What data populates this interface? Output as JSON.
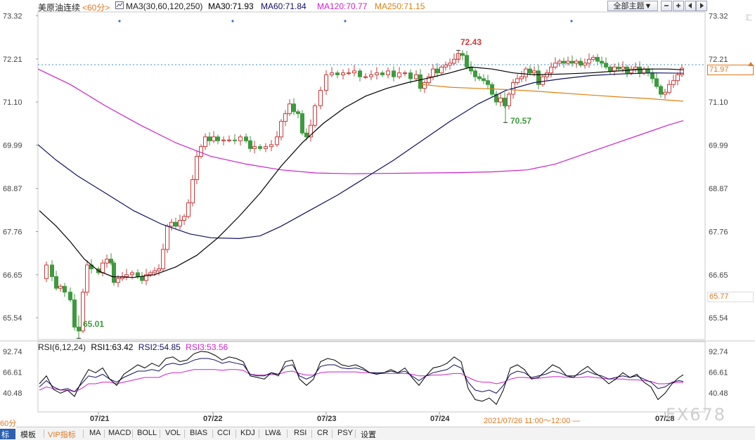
{
  "header": {
    "symbol": "美原油连续",
    "period": "<60分>",
    "ma_label": "MA3(30,60,120,250)",
    "ma30": "MA30:71.93",
    "ma60": "MA60:71.84",
    "ma120": "MA120:70.77",
    "ma250": "MA250:71.15",
    "theme_select": "全部主题▼"
  },
  "price_axis": {
    "ticks": [
      "73.32",
      "72.21",
      "71.10",
      "69.99",
      "68.87",
      "67.76",
      "66.65",
      "65.54"
    ],
    "current_price": "71.97",
    "low_marker": "65.77"
  },
  "annotations": {
    "high": "72.43",
    "mid_low": "70.57",
    "low": "65.01"
  },
  "rsi": {
    "label": "RSI(6,12,24)",
    "rsi1": "RSI1:63.42",
    "rsi2": "RSI2:54.85",
    "rsi3": "RSI3:53.56",
    "ticks": [
      "92.74",
      "66.61",
      "40.48"
    ]
  },
  "x_axis": {
    "dates": [
      "07/21",
      "07/22",
      "07/23",
      "07/24",
      "07/28"
    ],
    "hover_time": "2021/07/26 11:00～12:00 —"
  },
  "bottom_tabs": [
    "标",
    "模板",
    "VIP指标",
    "MA",
    "MACD",
    "BOLL",
    "VOL",
    "BIAS",
    "CCI",
    "KDJ",
    "LW&",
    "RSI",
    "CR",
    "PSY",
    "设置"
  ],
  "bottom_left": "60分",
  "watermark": "FX678",
  "watermark_small": "汇",
  "colors": {
    "up": "#c83c3c",
    "down": "#3e9a3e",
    "ma30": "#000000",
    "ma60": "#101060",
    "ma120": "#cc22cc",
    "ma250": "#e08010",
    "accent": "#e07820"
  }
}
